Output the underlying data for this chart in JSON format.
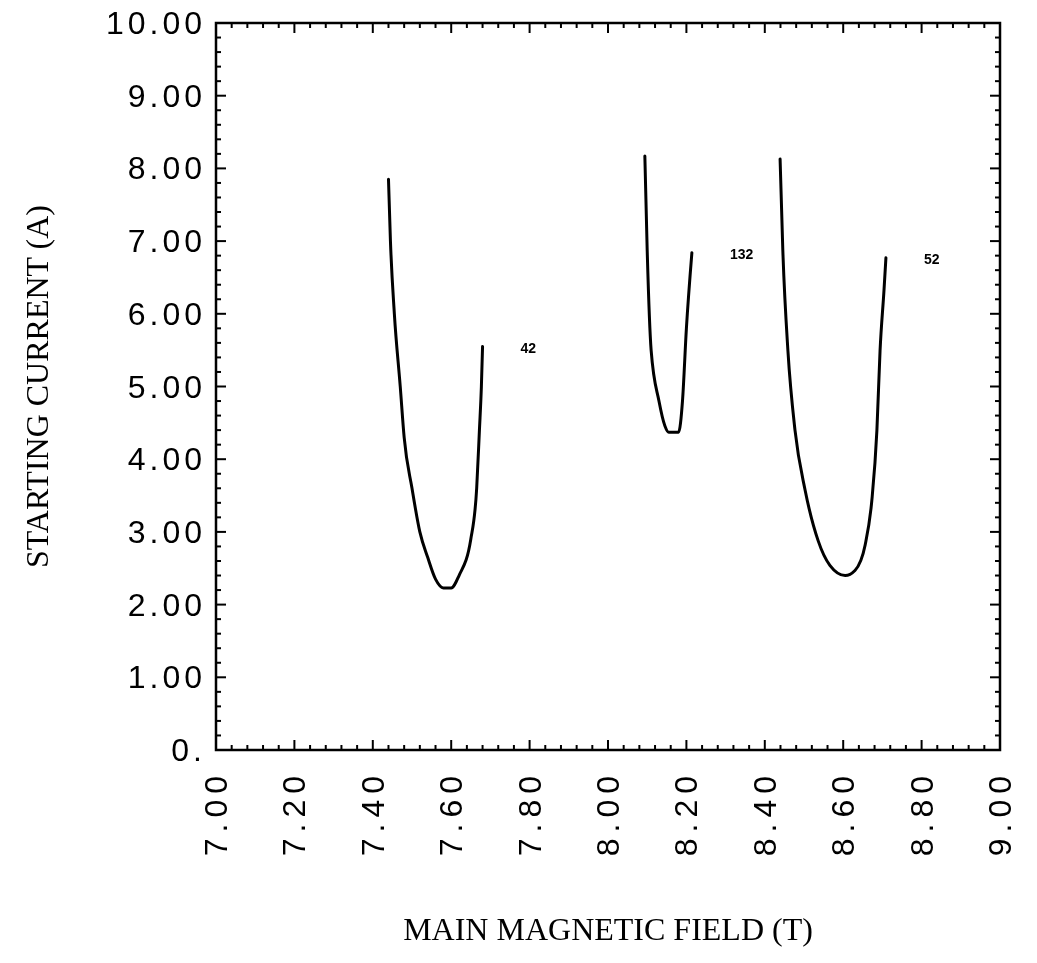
{
  "chart_data": {
    "type": "line",
    "xlabel": "MAIN MAGNETIC FIELD (T)",
    "ylabel": "STARTING CURRENT (A)",
    "xlim": [
      7,
      9
    ],
    "ylim": [
      0,
      10
    ],
    "xticks": [
      {
        "value": 7,
        "label": "7.00"
      },
      {
        "value": 7.04,
        "label": null
      },
      {
        "value": 7.08,
        "label": null
      },
      {
        "value": 7.12,
        "label": null
      },
      {
        "value": 7.16,
        "label": null
      },
      {
        "value": 7.2,
        "label": "7.20"
      },
      {
        "value": 7.24,
        "label": null
      },
      {
        "value": 7.28,
        "label": null
      },
      {
        "value": 7.32,
        "label": null
      },
      {
        "value": 7.36,
        "label": null
      },
      {
        "value": 7.4,
        "label": "7.40"
      },
      {
        "value": 7.44,
        "label": null
      },
      {
        "value": 7.48,
        "label": null
      },
      {
        "value": 7.52,
        "label": null
      },
      {
        "value": 7.56,
        "label": null
      },
      {
        "value": 7.6,
        "label": "7.60"
      },
      {
        "value": 7.64,
        "label": null
      },
      {
        "value": 7.68,
        "label": null
      },
      {
        "value": 7.72,
        "label": null
      },
      {
        "value": 7.76,
        "label": null
      },
      {
        "value": 7.8,
        "label": "7.80"
      },
      {
        "value": 7.84,
        "label": null
      },
      {
        "value": 7.88,
        "label": null
      },
      {
        "value": 7.92,
        "label": null
      },
      {
        "value": 7.96,
        "label": null
      },
      {
        "value": 8,
        "label": "8.00"
      },
      {
        "value": 8.04,
        "label": null
      },
      {
        "value": 8.08,
        "label": null
      },
      {
        "value": 8.12,
        "label": null
      },
      {
        "value": 8.16,
        "label": null
      },
      {
        "value": 8.2,
        "label": "8.20"
      },
      {
        "value": 8.24,
        "label": null
      },
      {
        "value": 8.28,
        "label": null
      },
      {
        "value": 8.32,
        "label": null
      },
      {
        "value": 8.36,
        "label": null
      },
      {
        "value": 8.4,
        "label": "8.40"
      },
      {
        "value": 8.44,
        "label": null
      },
      {
        "value": 8.48,
        "label": null
      },
      {
        "value": 8.52,
        "label": null
      },
      {
        "value": 8.56,
        "label": null
      },
      {
        "value": 8.6,
        "label": "8.60"
      },
      {
        "value": 8.64,
        "label": null
      },
      {
        "value": 8.68,
        "label": null
      },
      {
        "value": 8.72,
        "label": null
      },
      {
        "value": 8.76,
        "label": null
      },
      {
        "value": 8.8,
        "label": "8.80"
      },
      {
        "value": 8.84,
        "label": null
      },
      {
        "value": 8.88,
        "label": null
      },
      {
        "value": 8.92,
        "label": null
      },
      {
        "value": 8.96,
        "label": null
      },
      {
        "value": 9,
        "label": "9.00"
      }
    ],
    "yticks": [
      {
        "value": 0,
        "label": "0."
      },
      {
        "value": 0.2,
        "label": null
      },
      {
        "value": 0.4,
        "label": null
      },
      {
        "value": 0.6,
        "label": null
      },
      {
        "value": 0.8,
        "label": null
      },
      {
        "value": 1,
        "label": "1.00"
      },
      {
        "value": 1.2,
        "label": null
      },
      {
        "value": 1.4,
        "label": null
      },
      {
        "value": 1.6,
        "label": null
      },
      {
        "value": 1.8,
        "label": null
      },
      {
        "value": 2,
        "label": "2.00"
      },
      {
        "value": 2.2,
        "label": null
      },
      {
        "value": 2.4,
        "label": null
      },
      {
        "value": 2.6,
        "label": null
      },
      {
        "value": 2.8,
        "label": null
      },
      {
        "value": 3,
        "label": "3.00"
      },
      {
        "value": 3.2,
        "label": null
      },
      {
        "value": 3.4,
        "label": null
      },
      {
        "value": 3.6,
        "label": null
      },
      {
        "value": 3.8,
        "label": null
      },
      {
        "value": 4,
        "label": "4.00"
      },
      {
        "value": 4.2,
        "label": null
      },
      {
        "value": 4.4,
        "label": null
      },
      {
        "value": 4.6,
        "label": null
      },
      {
        "value": 4.8,
        "label": null
      },
      {
        "value": 5,
        "label": "5.00"
      },
      {
        "value": 5.2,
        "label": null
      },
      {
        "value": 5.4,
        "label": null
      },
      {
        "value": 5.6,
        "label": null
      },
      {
        "value": 5.8,
        "label": null
      },
      {
        "value": 6,
        "label": "6.00"
      },
      {
        "value": 6.2,
        "label": null
      },
      {
        "value": 6.4,
        "label": null
      },
      {
        "value": 6.6,
        "label": null
      },
      {
        "value": 6.8,
        "label": null
      },
      {
        "value": 7,
        "label": "7.00"
      },
      {
        "value": 7.2,
        "label": null
      },
      {
        "value": 7.4,
        "label": null
      },
      {
        "value": 7.6,
        "label": null
      },
      {
        "value": 7.8,
        "label": null
      },
      {
        "value": 8,
        "label": "8.00"
      },
      {
        "value": 8.2,
        "label": null
      },
      {
        "value": 8.4,
        "label": null
      },
      {
        "value": 8.6,
        "label": null
      },
      {
        "value": 8.8,
        "label": null
      },
      {
        "value": 9,
        "label": "9.00"
      },
      {
        "value": 9.2,
        "label": null
      },
      {
        "value": 9.4,
        "label": null
      },
      {
        "value": 9.6,
        "label": null
      },
      {
        "value": 9.8,
        "label": null
      },
      {
        "value": 10,
        "label": "10.00"
      }
    ],
    "grid": false,
    "legend": false,
    "marker": "none",
    "line_style": "solid",
    "series": [
      {
        "name": "42",
        "color": "#000000",
        "x": [
          7.44,
          7.445,
          7.455,
          7.47,
          7.48,
          7.5,
          7.52,
          7.54,
          7.56,
          7.58,
          7.6,
          7.62,
          7.65,
          7.665,
          7.672,
          7.677,
          7.68
        ],
        "values": [
          7.85,
          7.0,
          6.0,
          5.0,
          4.3,
          3.6,
          3.0,
          2.65,
          2.35,
          2.23,
          2.23,
          2.4,
          2.9,
          3.6,
          4.4,
          5.0,
          5.55
        ]
      },
      {
        "name": "132",
        "color": "#000000",
        "x": [
          8.094,
          8.1,
          8.11,
          8.13,
          8.145,
          8.155,
          8.18,
          8.19,
          8.2,
          8.214
        ],
        "values": [
          8.17,
          6.87,
          5.5,
          4.8,
          4.46,
          4.37,
          4.37,
          4.8,
          5.8,
          6.84
        ]
      },
      {
        "name": "52",
        "color": "#000000",
        "x": [
          8.439,
          8.446,
          8.459,
          8.477,
          8.503,
          8.536,
          8.566,
          8.605,
          8.63,
          8.656,
          8.673,
          8.686,
          8.694,
          8.704,
          8.709
        ],
        "values": [
          8.13,
          6.87,
          5.49,
          4.4,
          3.57,
          2.88,
          2.54,
          2.4,
          2.47,
          2.82,
          3.43,
          4.4,
          5.49,
          6.32,
          6.77
        ]
      }
    ]
  }
}
